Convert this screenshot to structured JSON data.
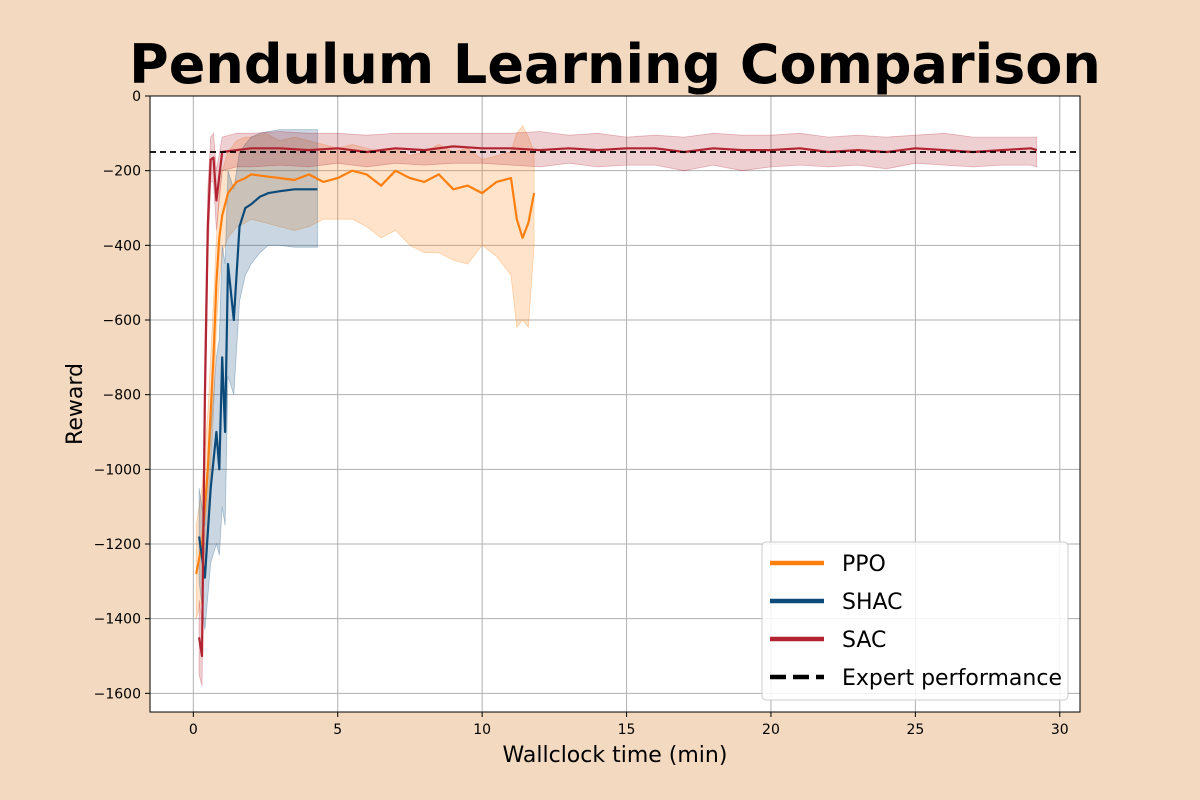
{
  "chart_data": {
    "type": "line",
    "title": "Pendulum Learning Comparison",
    "xlabel": "Wallclock time (min)",
    "ylabel": "Reward",
    "xlim": [
      -1.5,
      30.7
    ],
    "ylim": [
      -1650,
      0
    ],
    "xticks": [
      0,
      5,
      10,
      15,
      20,
      25,
      30
    ],
    "yticks": [
      0,
      -200,
      -400,
      -600,
      -800,
      -1000,
      -1200,
      -1400,
      -1600
    ],
    "xtick_labels": [
      "0",
      "5",
      "10",
      "15",
      "20",
      "25",
      "30"
    ],
    "ytick_labels": [
      "0",
      "−200",
      "−400",
      "−600",
      "−800",
      "−1000",
      "−1200",
      "−1400",
      "−1600"
    ],
    "grid": true,
    "legend_position": "lower-right",
    "expert_performance": -150,
    "series": [
      {
        "name": "PPO",
        "color": "#ff7f0e",
        "x": [
          0.1,
          0.3,
          0.5,
          0.7,
          0.8,
          0.9,
          1.0,
          1.2,
          1.5,
          1.8,
          2.0,
          2.5,
          3.0,
          3.5,
          4.0,
          4.5,
          5.0,
          5.5,
          6.0,
          6.5,
          7.0,
          7.5,
          8.0,
          8.5,
          9.0,
          9.5,
          10.0,
          10.5,
          11.0,
          11.2,
          11.4,
          11.6,
          11.8
        ],
        "values": [
          -1280,
          -1200,
          -1000,
          -700,
          -500,
          -380,
          -320,
          -260,
          -230,
          -220,
          -210,
          -215,
          -220,
          -225,
          -210,
          -230,
          -220,
          -200,
          -210,
          -240,
          -200,
          -220,
          -230,
          -210,
          -250,
          -240,
          -260,
          -230,
          -220,
          -330,
          -380,
          -340,
          -260
        ],
        "band_upper": [
          -1150,
          -1050,
          -850,
          -550,
          -380,
          -250,
          -200,
          -150,
          -120,
          -110,
          -110,
          -100,
          -120,
          -110,
          -120,
          -130,
          -140,
          -130,
          -140,
          -150,
          -140,
          -160,
          -150,
          -130,
          -150,
          -140,
          -170,
          -160,
          -150,
          -100,
          -80,
          -110,
          -150
        ],
        "band_lower": [
          -1400,
          -1350,
          -1150,
          -850,
          -620,
          -500,
          -420,
          -380,
          -350,
          -340,
          -330,
          -340,
          -350,
          -360,
          -350,
          -330,
          -330,
          -330,
          -350,
          -380,
          -360,
          -400,
          -420,
          -420,
          -440,
          -450,
          -400,
          -430,
          -480,
          -620,
          -600,
          -620,
          -400
        ]
      },
      {
        "name": "SHAC",
        "color": "#0c4a7a",
        "x": [
          0.2,
          0.4,
          0.6,
          0.8,
          0.9,
          1.0,
          1.1,
          1.2,
          1.4,
          1.6,
          1.8,
          2.0,
          2.3,
          2.6,
          3.0,
          3.5,
          4.0,
          4.3
        ],
        "values": [
          -1180,
          -1290,
          -1050,
          -900,
          -1000,
          -700,
          -900,
          -450,
          -600,
          -350,
          -300,
          -290,
          -270,
          -260,
          -255,
          -250,
          -250,
          -250
        ],
        "band_upper": [
          -1050,
          -1150,
          -900,
          -700,
          -650,
          -400,
          -450,
          -200,
          -250,
          -150,
          -130,
          -110,
          -100,
          -95,
          -90,
          -90,
          -90,
          -90
        ],
        "band_lower": [
          -1300,
          -1430,
          -1250,
          -1200,
          -1230,
          -1100,
          -1150,
          -750,
          -800,
          -550,
          -480,
          -450,
          -420,
          -400,
          -400,
          -405,
          -405,
          -405
        ]
      },
      {
        "name": "SAC",
        "color": "#b22432",
        "x": [
          0.2,
          0.3,
          0.4,
          0.5,
          0.6,
          0.7,
          0.8,
          1.0,
          1.5,
          2.0,
          3.0,
          4.0,
          5.0,
          6.0,
          7.0,
          8.0,
          9.0,
          10.0,
          11.0,
          12.0,
          13.0,
          14.0,
          15.0,
          16.0,
          17.0,
          18.0,
          19.0,
          20.0,
          21.0,
          22.0,
          23.0,
          24.0,
          25.0,
          26.0,
          27.0,
          28.0,
          29.0,
          29.2
        ],
        "values": [
          -1450,
          -1500,
          -800,
          -350,
          -170,
          -165,
          -280,
          -150,
          -145,
          -140,
          -140,
          -145,
          -140,
          -150,
          -140,
          -145,
          -135,
          -140,
          -140,
          -145,
          -140,
          -145,
          -140,
          -140,
          -150,
          -140,
          -145,
          -145,
          -140,
          -150,
          -145,
          -150,
          -140,
          -145,
          -150,
          -145,
          -140,
          -145
        ],
        "band_upper": [
          -1350,
          -1400,
          -650,
          -250,
          -110,
          -100,
          -200,
          -110,
          -100,
          -100,
          -95,
          -100,
          -100,
          -105,
          -100,
          -100,
          -100,
          -100,
          -100,
          -95,
          -105,
          -100,
          -110,
          -105,
          -110,
          -100,
          -105,
          -105,
          -100,
          -110,
          -105,
          -110,
          -105,
          -100,
          -110,
          -110,
          -110,
          -110
        ],
        "band_lower": [
          -1550,
          -1580,
          -950,
          -450,
          -230,
          -230,
          -360,
          -200,
          -190,
          -190,
          -185,
          -190,
          -180,
          -190,
          -180,
          -185,
          -180,
          -180,
          -185,
          -190,
          -180,
          -190,
          -185,
          -185,
          -200,
          -185,
          -200,
          -190,
          -185,
          -190,
          -185,
          -195,
          -180,
          -185,
          -190,
          -185,
          -185,
          -190
        ]
      }
    ],
    "legend": [
      "PPO",
      "SHAC",
      "SAC",
      "Expert performance"
    ]
  }
}
